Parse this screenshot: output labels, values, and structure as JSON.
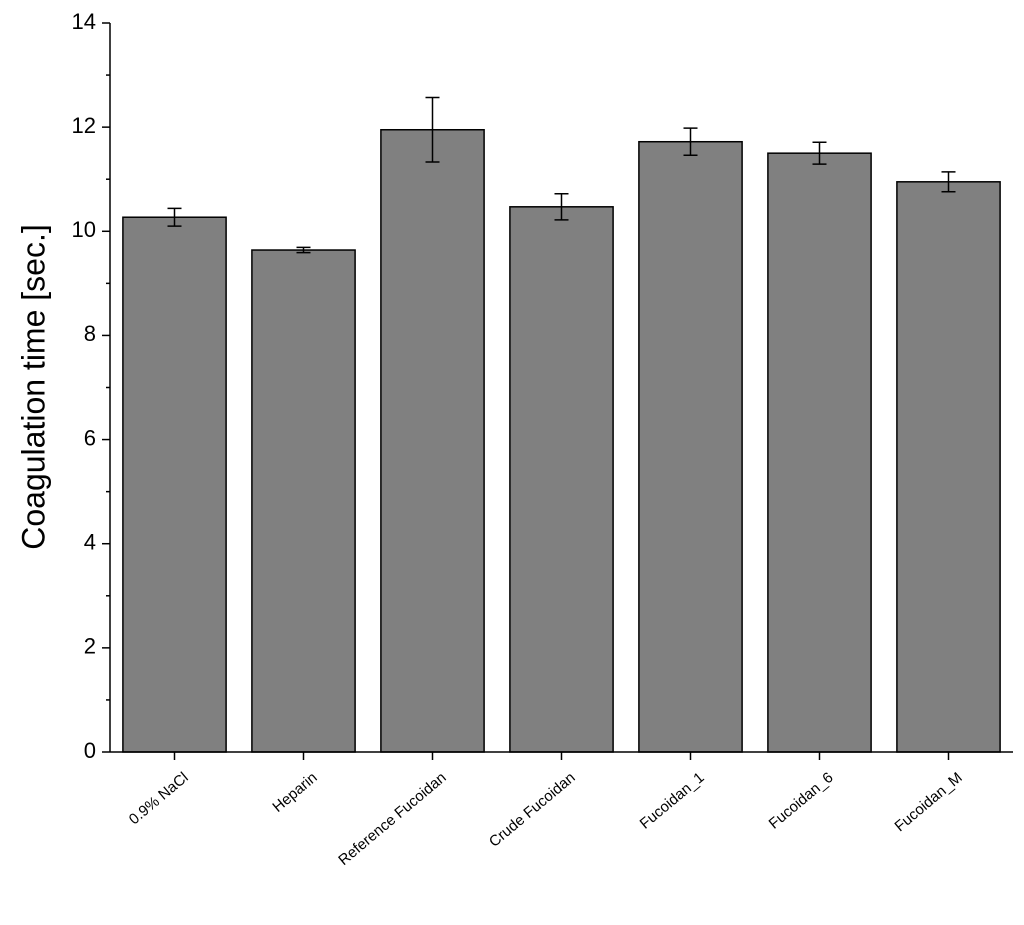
{
  "chart_data": {
    "type": "bar",
    "y_label": "Coagulation time [sec.]",
    "categories": [
      "0.9% NaCl",
      "Heparin",
      "Reference Fucoidan",
      "Crude Fucoidan",
      "Fucoidan_1",
      "Fucoidan_6",
      "Fucoidan_M"
    ],
    "values": [
      10.27,
      9.64,
      11.95,
      10.47,
      11.72,
      11.5,
      10.95
    ],
    "errors": [
      0.17,
      0.05,
      0.62,
      0.25,
      0.26,
      0.21,
      0.19
    ],
    "color": "#808080",
    "ylim": [
      0,
      14
    ],
    "yticks": [
      0,
      2,
      4,
      6,
      8,
      10,
      12,
      14
    ],
    "yminorticks": [
      1,
      3,
      5,
      7,
      9,
      11,
      13
    ],
    "grid": false
  }
}
